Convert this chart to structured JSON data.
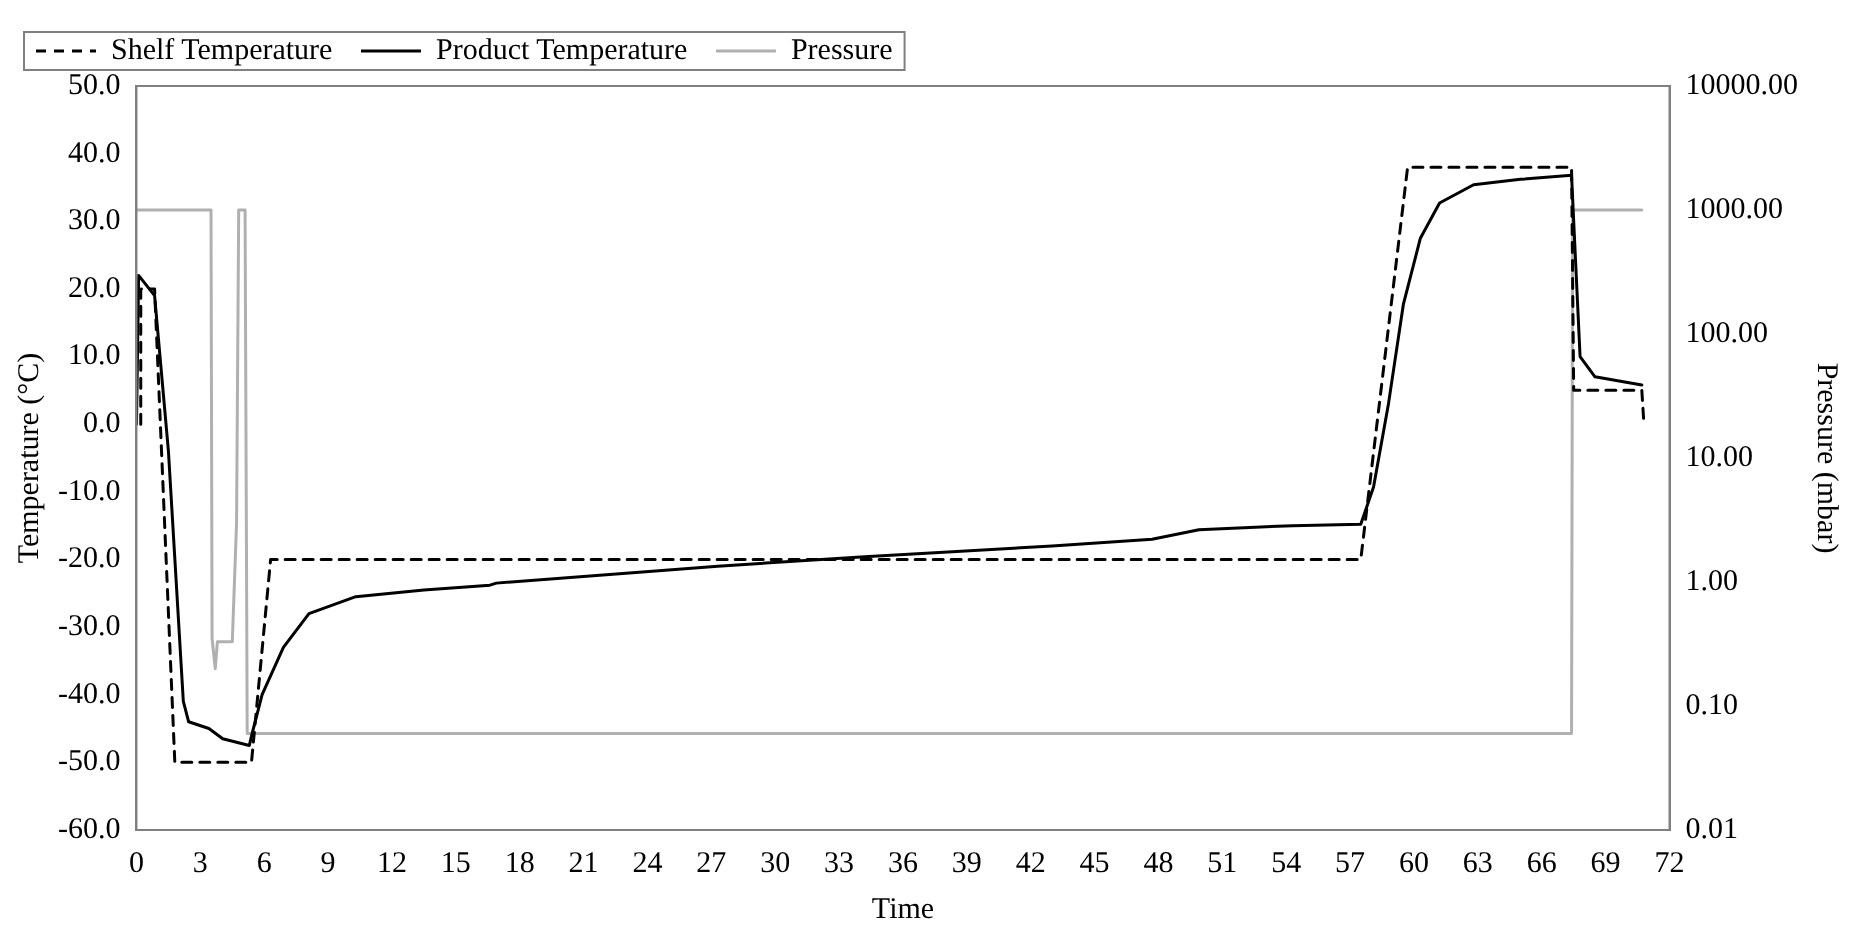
{
  "chart_data": {
    "type": "line",
    "xlabel": "Time",
    "ylabel": "Temperature (°C)",
    "y2label": "Pressure (mbar)",
    "series": [
      {
        "name": "Shelf Temperature",
        "color": "#000000",
        "line_style": "dashed",
        "x": [
          0.2,
          0.2,
          0.85,
          1.8,
          5.4,
          6.3,
          57.5,
          59.7,
          67.4,
          67.5,
          70.7,
          70.8
        ],
        "values": [
          0,
          20,
          20,
          -50,
          -50,
          -20,
          -20,
          38,
          38,
          5,
          5,
          0
        ]
      },
      {
        "name": "Product Temperature",
        "color": "#000000",
        "line_style": "solid",
        "x": [
          0,
          0.1,
          0.85,
          1.5,
          2.2,
          2.45,
          3.4,
          4.05,
          5.3,
          5.45,
          5.9,
          6.9,
          8.1,
          10.3,
          13.5,
          16.6,
          16.9,
          27.3,
          34.2,
          43,
          47.7,
          49.9,
          54.3,
          57.5,
          58.1,
          58.8,
          59.5,
          60.3,
          61.2,
          62.8,
          65,
          67.4,
          67.5,
          67.8,
          68.5,
          70.7
        ],
        "values": [
          0,
          22,
          19,
          -4,
          -41,
          -44,
          -45,
          -46.5,
          -47.5,
          -45.5,
          -40,
          -33,
          -28,
          -25.5,
          -24.5,
          -23.8,
          -23.5,
          -21,
          -19.6,
          -18,
          -17,
          -15.6,
          -15,
          -14.8,
          -9.3,
          3,
          17.7,
          27.5,
          32.7,
          35.4,
          36.2,
          36.8,
          30,
          10,
          7,
          5.8
        ]
      },
      {
        "name": "Pressure",
        "color": "#b0b0b0",
        "line_style": "solid",
        "axis": "y2",
        "x": [
          0,
          3.5,
          3.55,
          3.7,
          3.8,
          4.5,
          4.7,
          4.8,
          5.1,
          5.2,
          67.4,
          67.45,
          70.7
        ],
        "values": [
          1000,
          1000,
          0.35,
          0.2,
          0.33,
          0.33,
          3,
          1000,
          1000,
          0.06,
          0.06,
          1000,
          1000
        ]
      }
    ],
    "xlim": [
      0,
      72
    ],
    "xticks": [
      0,
      3,
      6,
      9,
      12,
      15,
      18,
      21,
      24,
      27,
      30,
      33,
      36,
      39,
      42,
      45,
      48,
      51,
      54,
      57,
      60,
      63,
      66,
      69,
      72
    ],
    "ylim": [
      -60,
      50
    ],
    "yticks": [
      {
        "value": -60,
        "label": "-60.0"
      },
      {
        "value": -50,
        "label": "-50.0"
      },
      {
        "value": -40,
        "label": "-40.0"
      },
      {
        "value": -30,
        "label": "-30.0"
      },
      {
        "value": -20,
        "label": "-20.0"
      },
      {
        "value": -10,
        "label": "-10.0"
      },
      {
        "value": 0,
        "label": "0.0"
      },
      {
        "value": 10,
        "label": "10.0"
      },
      {
        "value": 20,
        "label": "20.0"
      },
      {
        "value": 30,
        "label": "30.0"
      },
      {
        "value": 40,
        "label": "40.0"
      },
      {
        "value": 50,
        "label": "50.0"
      }
    ],
    "y2lim": [
      0.01,
      10000
    ],
    "y2ticks": [
      {
        "value": 0.01,
        "label": "0.01"
      },
      {
        "value": 0.1,
        "label": "0.10"
      },
      {
        "value": 1,
        "label": "1.00"
      },
      {
        "value": 10,
        "label": "10.00"
      },
      {
        "value": 100,
        "label": "100.00"
      },
      {
        "value": 1000,
        "label": "1000.00"
      },
      {
        "value": 10000,
        "label": "10000.00"
      }
    ],
    "log": "y2",
    "grid": false,
    "legend": "top",
    "marker": "none"
  }
}
